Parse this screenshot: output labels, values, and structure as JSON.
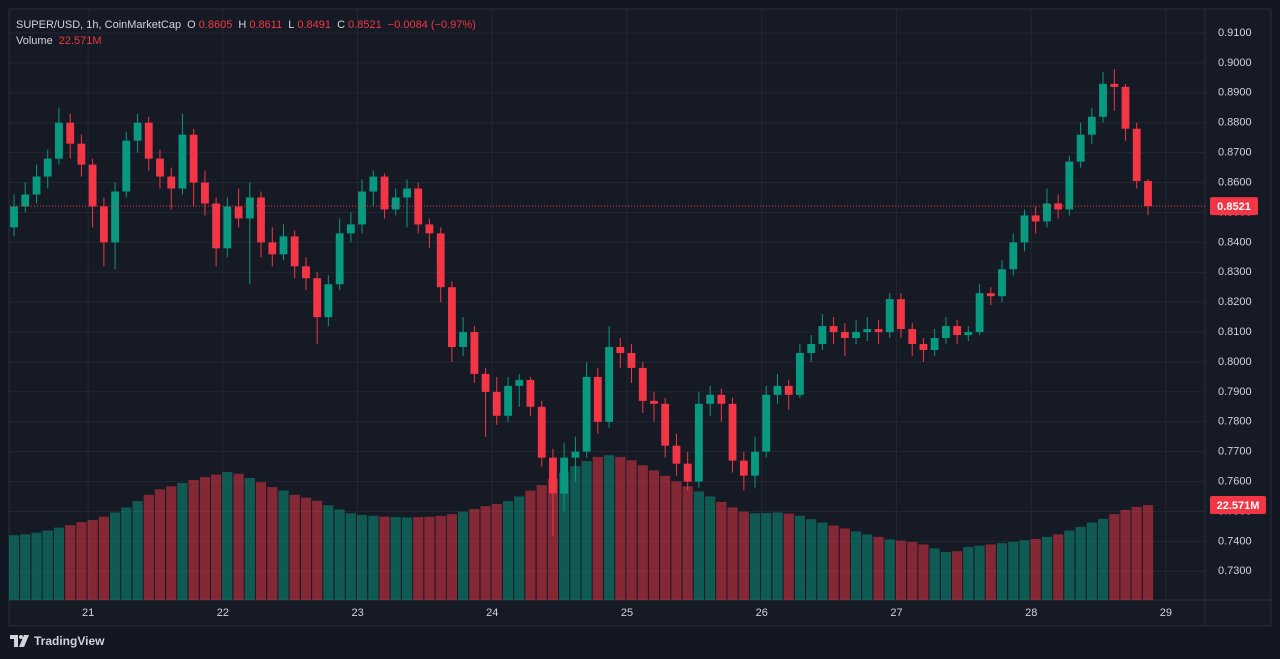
{
  "chart_data": {
    "type": "candlestick",
    "title": "SUPER/USD, 1h, CoinMarketCap",
    "ohlc_labels": [
      "O",
      "H",
      "L",
      "C"
    ],
    "change": "−0.0084 (−0.97%)",
    "volume_title": "Volume",
    "volume_label": "22.571M",
    "x": [
      20.45,
      20.533,
      20.617,
      20.7,
      20.783,
      20.867,
      20.95,
      21.033,
      21.117,
      21.2,
      21.283,
      21.367,
      21.45,
      21.533,
      21.617,
      21.7,
      21.783,
      21.867,
      21.95,
      22.033,
      22.117,
      22.2,
      22.283,
      22.367,
      22.45,
      22.533,
      22.617,
      22.7,
      22.783,
      22.867,
      22.95,
      23.033,
      23.117,
      23.2,
      23.283,
      23.367,
      23.45,
      23.533,
      23.617,
      23.7,
      23.783,
      23.867,
      23.95,
      24.033,
      24.117,
      24.2,
      24.283,
      24.367,
      24.45,
      24.533,
      24.617,
      24.7,
      24.783,
      24.867,
      24.95,
      25.033,
      25.117,
      25.2,
      25.283,
      25.367,
      25.45,
      25.533,
      25.617,
      25.7,
      25.783,
      25.867,
      25.95,
      26.033,
      26.117,
      26.2,
      26.283,
      26.367,
      26.45,
      26.533,
      26.617,
      26.7,
      26.783,
      26.867,
      26.95,
      27.033,
      27.117,
      27.2,
      27.283,
      27.367,
      27.45,
      27.533,
      27.617,
      27.7,
      27.783,
      27.867,
      27.95,
      28.033,
      28.117,
      28.2,
      28.283,
      28.367,
      28.45,
      28.533,
      28.617,
      28.7,
      28.783,
      28.867
    ],
    "open": [
      0.845,
      0.852,
      0.856,
      0.862,
      0.868,
      0.88,
      0.873,
      0.866,
      0.852,
      0.84,
      0.857,
      0.874,
      0.88,
      0.868,
      0.862,
      0.858,
      0.876,
      0.86,
      0.853,
      0.838,
      0.852,
      0.848,
      0.855,
      0.84,
      0.836,
      0.842,
      0.832,
      0.828,
      0.815,
      0.826,
      0.843,
      0.846,
      0.857,
      0.862,
      0.851,
      0.855,
      0.858,
      0.846,
      0.843,
      0.825,
      0.805,
      0.81,
      0.796,
      0.79,
      0.782,
      0.792,
      0.794,
      0.785,
      0.768,
      0.756,
      0.768,
      0.77,
      0.795,
      0.78,
      0.805,
      0.803,
      0.798,
      0.787,
      0.786,
      0.772,
      0.766,
      0.76,
      0.786,
      0.789,
      0.786,
      0.767,
      0.762,
      0.77,
      0.789,
      0.792,
      0.789,
      0.803,
      0.806,
      0.812,
      0.81,
      0.808,
      0.81,
      0.811,
      0.81,
      0.821,
      0.811,
      0.806,
      0.804,
      0.808,
      0.812,
      0.809,
      0.81,
      0.823,
      0.822,
      0.831,
      0.84,
      0.849,
      0.847,
      0.853,
      0.851,
      0.867,
      0.876,
      0.882,
      0.893,
      0.892,
      0.878,
      0.8605
    ],
    "high": [
      0.856,
      0.86,
      0.866,
      0.871,
      0.885,
      0.883,
      0.876,
      0.868,
      0.855,
      0.86,
      0.877,
      0.883,
      0.882,
      0.871,
      0.865,
      0.883,
      0.878,
      0.864,
      0.855,
      0.855,
      0.858,
      0.86,
      0.857,
      0.845,
      0.846,
      0.844,
      0.835,
      0.83,
      0.829,
      0.848,
      0.85,
      0.861,
      0.864,
      0.863,
      0.858,
      0.861,
      0.86,
      0.848,
      0.845,
      0.827,
      0.815,
      0.812,
      0.798,
      0.795,
      0.795,
      0.796,
      0.795,
      0.787,
      0.771,
      0.773,
      0.775,
      0.8,
      0.798,
      0.812,
      0.808,
      0.806,
      0.8,
      0.79,
      0.788,
      0.776,
      0.77,
      0.79,
      0.792,
      0.791,
      0.788,
      0.77,
      0.775,
      0.792,
      0.796,
      0.794,
      0.806,
      0.809,
      0.816,
      0.815,
      0.813,
      0.814,
      0.815,
      0.814,
      0.823,
      0.823,
      0.813,
      0.808,
      0.811,
      0.815,
      0.814,
      0.812,
      0.826,
      0.825,
      0.834,
      0.843,
      0.851,
      0.852,
      0.858,
      0.856,
      0.869,
      0.88,
      0.885,
      0.897,
      0.898,
      0.893,
      0.88,
      0.8611
    ],
    "low": [
      0.842,
      0.85,
      0.853,
      0.858,
      0.866,
      0.868,
      0.862,
      0.845,
      0.832,
      0.831,
      0.855,
      0.87,
      0.864,
      0.858,
      0.851,
      0.856,
      0.852,
      0.849,
      0.832,
      0.835,
      0.845,
      0.826,
      0.835,
      0.832,
      0.834,
      0.828,
      0.824,
      0.806,
      0.812,
      0.824,
      0.84,
      0.843,
      0.852,
      0.848,
      0.849,
      0.845,
      0.843,
      0.838,
      0.82,
      0.8,
      0.802,
      0.793,
      0.775,
      0.779,
      0.78,
      0.785,
      0.782,
      0.765,
      0.742,
      0.75,
      0.76,
      0.768,
      0.776,
      0.778,
      0.798,
      0.793,
      0.783,
      0.78,
      0.768,
      0.762,
      0.757,
      0.758,
      0.782,
      0.78,
      0.763,
      0.757,
      0.758,
      0.768,
      0.786,
      0.784,
      0.788,
      0.8,
      0.804,
      0.806,
      0.802,
      0.806,
      0.807,
      0.806,
      0.808,
      0.808,
      0.802,
      0.8,
      0.802,
      0.806,
      0.806,
      0.807,
      0.809,
      0.819,
      0.82,
      0.829,
      0.837,
      0.843,
      0.845,
      0.848,
      0.849,
      0.865,
      0.873,
      0.88,
      0.884,
      0.874,
      0.858,
      0.8491
    ],
    "close": [
      0.852,
      0.856,
      0.862,
      0.868,
      0.88,
      0.873,
      0.866,
      0.852,
      0.84,
      0.857,
      0.874,
      0.88,
      0.868,
      0.862,
      0.858,
      0.876,
      0.86,
      0.853,
      0.838,
      0.852,
      0.848,
      0.855,
      0.84,
      0.836,
      0.842,
      0.832,
      0.828,
      0.815,
      0.826,
      0.843,
      0.846,
      0.857,
      0.862,
      0.851,
      0.855,
      0.858,
      0.846,
      0.843,
      0.825,
      0.805,
      0.81,
      0.796,
      0.79,
      0.782,
      0.792,
      0.794,
      0.785,
      0.768,
      0.756,
      0.768,
      0.77,
      0.795,
      0.78,
      0.805,
      0.803,
      0.798,
      0.787,
      0.786,
      0.772,
      0.766,
      0.76,
      0.786,
      0.789,
      0.786,
      0.767,
      0.762,
      0.77,
      0.789,
      0.792,
      0.789,
      0.803,
      0.806,
      0.812,
      0.81,
      0.808,
      0.81,
      0.811,
      0.81,
      0.821,
      0.811,
      0.806,
      0.804,
      0.808,
      0.812,
      0.809,
      0.81,
      0.823,
      0.822,
      0.831,
      0.84,
      0.849,
      0.847,
      0.853,
      0.851,
      0.867,
      0.876,
      0.882,
      0.893,
      0.892,
      0.878,
      0.8605,
      0.8521
    ],
    "volume": [
      15.4,
      15.6,
      16,
      16.5,
      17.2,
      17.8,
      18.5,
      19,
      19.8,
      20.8,
      22,
      23.5,
      25,
      26.3,
      27,
      27.8,
      28.5,
      29.2,
      29.8,
      30.4,
      30,
      29,
      28,
      26.8,
      26,
      25,
      24.3,
      23.6,
      22.5,
      21.5,
      20.6,
      20.2,
      20,
      19.8,
      19.7,
      19.6,
      19.7,
      19.8,
      20,
      20.4,
      21,
      21.6,
      22.3,
      22.8,
      23.5,
      24.6,
      26,
      27.3,
      28.8,
      30.3,
      31.8,
      33,
      34,
      34.4,
      34,
      33.2,
      32,
      30.8,
      29.5,
      28.2,
      27,
      25.8,
      24.6,
      23.3,
      22,
      21,
      20.6,
      20.7,
      20.8,
      20.5,
      20,
      19.2,
      18.4,
      17.7,
      17,
      16.3,
      15.6,
      15,
      14.4,
      14.1,
      13.8,
      13.2,
      12.3,
      11.4,
      11.6,
      12.6,
      12.9,
      13.2,
      13.5,
      13.8,
      14.2,
      14.5,
      15,
      15.6,
      16.5,
      17.4,
      18.4,
      19.3,
      20.4,
      21.4,
      22.1,
      22.571
    ],
    "up_color": "#089981",
    "down_color": "#f23645",
    "xlim": [
      20.42,
      29.29
    ],
    "xticks": [
      21,
      22,
      23,
      24,
      25,
      26,
      27,
      28,
      29
    ],
    "ylim": [
      0.7204,
      0.9177
    ],
    "yticks": [
      {
        "value": 0.73,
        "label": "0.7300"
      },
      {
        "value": 0.74,
        "label": "0.7400"
      },
      {
        "value": 0.75,
        "label": "0.7500"
      },
      {
        "value": 0.76,
        "label": "0.7600"
      },
      {
        "value": 0.77,
        "label": "0.7700"
      },
      {
        "value": 0.78,
        "label": "0.7800"
      },
      {
        "value": 0.79,
        "label": "0.7900"
      },
      {
        "value": 0.8,
        "label": "0.8000"
      },
      {
        "value": 0.81,
        "label": "0.8100"
      },
      {
        "value": 0.82,
        "label": "0.8200"
      },
      {
        "value": 0.83,
        "label": "0.8300"
      },
      {
        "value": 0.84,
        "label": "0.8400"
      },
      {
        "value": 0.85,
        "label": "0.8500"
      },
      {
        "value": 0.86,
        "label": "0.8600"
      },
      {
        "value": 0.87,
        "label": "0.8700"
      },
      {
        "value": 0.88,
        "label": "0.8800"
      },
      {
        "value": 0.89,
        "label": "0.8900"
      },
      {
        "value": 0.9,
        "label": "0.9000"
      },
      {
        "value": 0.91,
        "label": "0.9100"
      }
    ],
    "volume_lim": [
      0,
      59.4
    ],
    "grid": true
  },
  "watermark": "TradingView"
}
